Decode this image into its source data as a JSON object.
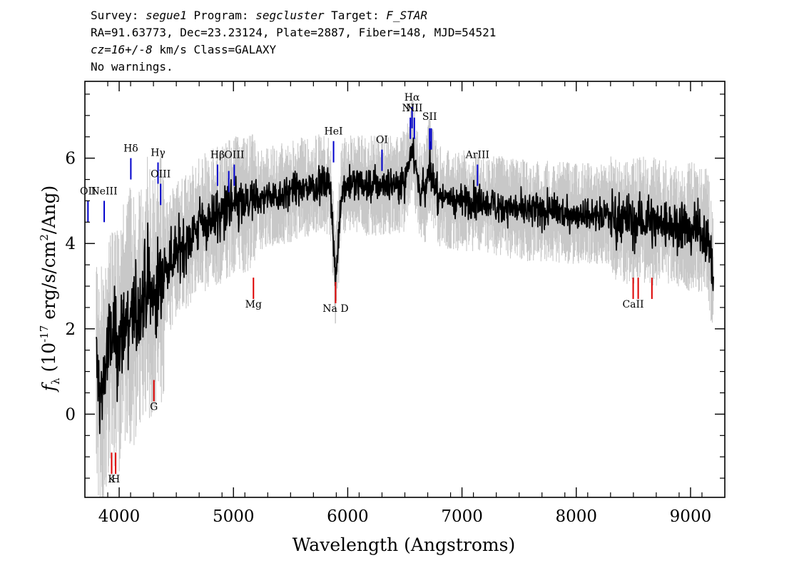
{
  "header": {
    "line1_a": "Survey: ",
    "survey": "segue1",
    "line1_b": " Program: ",
    "program": "segcluster",
    "line1_c": " Target: ",
    "target": "F_STAR",
    "line2": "RA=91.63773, Dec=23.23124, Plate=2887, Fiber=148, MJD=54521",
    "cz": "cz=16+/-8",
    "line3_rest": " km/s Class=GALAXY",
    "line4": "No warnings."
  },
  "chart_data": {
    "type": "line",
    "xlabel": "Wavelength (Angstroms)",
    "ylabel_prefix": "f",
    "ylabel_sub": "λ",
    "ylabel_unit_a": "(10",
    "ylabel_unit_exp": "-17",
    "ylabel_unit_b": " erg/s/cm",
    "ylabel_unit_exp2": "2",
    "ylabel_unit_c": "/Ang)",
    "xlim": [
      3700,
      9300
    ],
    "ylim": [
      -1.95,
      7.8
    ],
    "xticks": [
      4000,
      5000,
      6000,
      7000,
      8000,
      9000
    ],
    "xtick_labels": [
      "4000",
      "5000",
      "6000",
      "7000",
      "8000",
      "9000"
    ],
    "yticks": [
      0,
      2,
      4,
      6
    ],
    "ytick_labels": [
      "0",
      "2",
      "4",
      "6"
    ],
    "colors": {
      "flux": "#000000",
      "error": "#c8c8c8",
      "emission": "#0000cc",
      "absorption": "#dd0000"
    },
    "series": [
      {
        "style": "smoothed",
        "x": [
          3800,
          3840,
          3880,
          3920,
          3960,
          4000,
          4050,
          4100,
          4150,
          4200,
          4250,
          4300,
          4350,
          4400,
          4450,
          4500,
          4600,
          4700,
          4800,
          4900,
          5000,
          5100,
          5200,
          5300,
          5400,
          5500,
          5600,
          5700,
          5800,
          5850,
          5893,
          5950,
          6000,
          6100,
          6200,
          6300,
          6400,
          6500,
          6563,
          6620,
          6680,
          6717,
          6731,
          6800,
          6900,
          7000,
          7100,
          7200,
          7400,
          7600,
          7800,
          8000,
          8200,
          8400,
          8500,
          8600,
          8700,
          8800,
          9000,
          9100,
          9150,
          9200
        ],
        "y": [
          1.2,
          0.3,
          1.2,
          1.7,
          1.8,
          1.6,
          2.1,
          2.3,
          2.2,
          2.7,
          3.0,
          2.6,
          3.1,
          3.4,
          3.6,
          3.8,
          4.1,
          4.4,
          4.6,
          4.7,
          4.9,
          4.9,
          5.0,
          5.1,
          5.15,
          5.2,
          5.3,
          5.35,
          5.4,
          5.35,
          3.1,
          5.3,
          5.4,
          5.4,
          5.35,
          5.4,
          5.4,
          5.45,
          6.4,
          5.3,
          5.2,
          5.9,
          5.6,
          5.1,
          5.05,
          5.0,
          5.0,
          4.95,
          4.85,
          4.75,
          4.75,
          4.7,
          4.7,
          4.6,
          4.5,
          4.55,
          4.5,
          4.45,
          4.4,
          4.3,
          4.25,
          3.2
        ]
      }
    ],
    "lines": [
      {
        "label": "OII",
        "wave": 3727,
        "kind": "emission",
        "y_top": 5.0,
        "y_bottom": 4.5,
        "label_y": 5.15
      },
      {
        "label": "NeIII",
        "wave": 3869,
        "kind": "emission",
        "y_top": 5.0,
        "y_bottom": 4.5,
        "label_y": 5.15
      },
      {
        "label": "Hδ",
        "wave": 4102,
        "kind": "emission",
        "y_top": 6.0,
        "y_bottom": 5.5,
        "label_y": 6.15
      },
      {
        "label": "Hγ",
        "wave": 4340,
        "kind": "emission",
        "y_top": 5.9,
        "y_bottom": 5.4,
        "label_y": 6.05
      },
      {
        "label": "OIII",
        "wave": 4363,
        "kind": "emission",
        "y_top": 5.4,
        "y_bottom": 4.9,
        "label_y": 5.55
      },
      {
        "label": "Hβ",
        "wave": 4861,
        "kind": "emission",
        "y_top": 5.85,
        "y_bottom": 5.35,
        "label_y": 6.0
      },
      {
        "label": "",
        "wave": 4959,
        "kind": "emission",
        "y_top": 5.7,
        "y_bottom": 5.2,
        "label_y": 5.85
      },
      {
        "label": "OIII",
        "wave": 5007,
        "kind": "emission",
        "y_top": 5.85,
        "y_bottom": 5.35,
        "label_y": 6.0
      },
      {
        "label": "HeI",
        "wave": 5876,
        "kind": "emission",
        "y_top": 6.4,
        "y_bottom": 5.9,
        "label_y": 6.55
      },
      {
        "label": "OI",
        "wave": 6300,
        "kind": "emission",
        "y_top": 6.2,
        "y_bottom": 5.7,
        "label_y": 6.35
      },
      {
        "label": "NII",
        "wave": 6548,
        "kind": "emission",
        "y_top": 6.95,
        "y_bottom": 6.45,
        "label_y": 7.1
      },
      {
        "label": "Hα",
        "wave": 6563,
        "kind": "emission",
        "y_top": 7.2,
        "y_bottom": 6.7,
        "label_y": 7.35
      },
      {
        "label": "NII",
        "wave": 6583,
        "kind": "emission",
        "y_top": 6.95,
        "y_bottom": 6.45,
        "label_y": 7.1
      },
      {
        "label": "SII",
        "wave": 6717,
        "kind": "emission",
        "y_top": 6.7,
        "y_bottom": 6.2,
        "label_y": 6.9
      },
      {
        "label": "",
        "wave": 6731,
        "kind": "emission",
        "y_top": 6.7,
        "y_bottom": 6.2,
        "label_y": 6.9
      },
      {
        "label": "ArIII",
        "wave": 7136,
        "kind": "emission",
        "y_top": 5.85,
        "y_bottom": 5.35,
        "label_y": 6.0
      },
      {
        "label": "K",
        "wave": 3934,
        "kind": "absorption",
        "y_top": -0.9,
        "y_bottom": -1.4,
        "label_y": -1.6
      },
      {
        "label": "H",
        "wave": 3969,
        "kind": "absorption",
        "y_top": -0.9,
        "y_bottom": -1.4,
        "label_y": -1.6
      },
      {
        "label": "G",
        "wave": 4304,
        "kind": "absorption",
        "y_top": 0.8,
        "y_bottom": 0.3,
        "label_y": 0.1
      },
      {
        "label": "Mg",
        "wave": 5175,
        "kind": "absorption",
        "y_top": 3.2,
        "y_bottom": 2.7,
        "label_y": 2.5
      },
      {
        "label": "Na D",
        "wave": 5894,
        "kind": "absorption",
        "y_top": 3.1,
        "y_bottom": 2.6,
        "label_y": 2.4
      },
      {
        "label": "CaII",
        "wave": 8498,
        "kind": "absorption",
        "y_top": 3.2,
        "y_bottom": 2.7,
        "label_y": 2.5
      },
      {
        "label": "",
        "wave": 8542,
        "kind": "absorption",
        "y_top": 3.2,
        "y_bottom": 2.7,
        "label_y": 2.5
      },
      {
        "label": "",
        "wave": 8662,
        "kind": "absorption",
        "y_top": 3.2,
        "y_bottom": 2.7,
        "label_y": 2.5
      }
    ]
  }
}
